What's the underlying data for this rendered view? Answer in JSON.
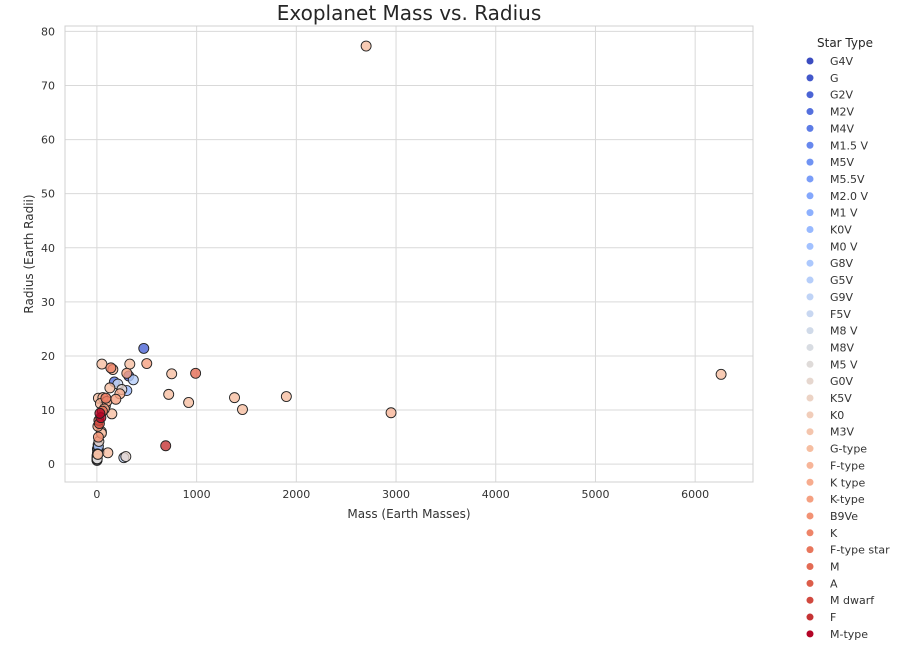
{
  "chart_data": {
    "type": "scatter",
    "title": "Exoplanet Mass vs. Radius",
    "xlabel": "Mass (Earth Masses)",
    "ylabel": "Radius (Earth Radii)",
    "xlim": [
      -320,
      6580
    ],
    "ylim": [
      -3.3,
      81.0
    ],
    "xticks": [
      0,
      1000,
      2000,
      3000,
      4000,
      5000,
      6000
    ],
    "yticks": [
      0,
      10,
      20,
      30,
      40,
      50,
      60,
      70,
      80
    ],
    "grid": true,
    "legend": {
      "title": "Star Type",
      "placement": "outside-right",
      "entries": [
        "G4V",
        "G",
        "G2V",
        "M2V",
        "M4V",
        "M1.5 V",
        "M5V",
        "M5.5V",
        "M2.0 V",
        "M1 V",
        "K0V",
        "M0 V",
        "G8V",
        "G5V",
        "G9V",
        "F5V",
        "M8 V",
        "M8V",
        "M5 V",
        "G0V",
        "K5V",
        "K0",
        "M3V",
        "G-type",
        "F-type",
        "K type",
        "K-type",
        "B9Ve",
        "K",
        "F-type star",
        "M",
        "A",
        "M dwarf",
        "F",
        "M-type"
      ]
    },
    "colors": [
      "#3b4cc0",
      "#4358cb",
      "#4b64d5",
      "#5470de",
      "#5d7ce6",
      "#6788ee",
      "#7093f3",
      "#7a9df8",
      "#84a7fc",
      "#8db0fe",
      "#98b9ff",
      "#a2c1ff",
      "#acc8fd",
      "#b6cefa",
      "#bfd3f6",
      "#c8d7f1",
      "#d0dae9",
      "#d8dce2",
      "#dfdbd9",
      "#e6d7cf",
      "#ecd3c5",
      "#f1cdba",
      "#f4c5ad",
      "#f6bea1",
      "#f7b599",
      "#f7ac8e",
      "#f5a081",
      "#f29274",
      "#ee8468",
      "#e8765c",
      "#e36b54",
      "#dc5d4a",
      "#d1493f",
      "#c53334",
      "#b40426"
    ],
    "series": [
      {
        "name": "G4V",
        "points": [
          [
            3,
            1.6
          ]
        ]
      },
      {
        "name": "G",
        "points": [
          [
            320,
            16.3
          ],
          [
            25,
            2.3
          ]
        ]
      },
      {
        "name": "G2V",
        "points": [
          [
            470,
            21.4
          ],
          [
            12,
            3.6
          ]
        ]
      },
      {
        "name": "M2V",
        "points": [
          [
            175,
            15.2
          ],
          [
            5,
            2.8
          ]
        ]
      },
      {
        "name": "M4V",
        "points": [
          [
            2,
            1.1
          ],
          [
            1,
            0.9
          ]
        ]
      },
      {
        "name": "M1.5 V",
        "points": [
          [
            3,
            1.5
          ]
        ]
      },
      {
        "name": "M5V",
        "points": [
          [
            1,
            0.8
          ]
        ]
      },
      {
        "name": "M5.5V",
        "points": [
          [
            2,
            1.2
          ]
        ]
      },
      {
        "name": "M2.0 V",
        "points": [
          [
            4,
            1.7
          ]
        ]
      },
      {
        "name": "M1 V",
        "points": [
          [
            6,
            2.0
          ]
        ]
      },
      {
        "name": "K0V",
        "points": [
          [
            300,
            13.6
          ]
        ]
      },
      {
        "name": "M0 V",
        "points": [
          [
            8,
            2.4
          ]
        ]
      },
      {
        "name": "G8V",
        "points": [
          [
            15,
            3.3
          ]
        ]
      },
      {
        "name": "G5V",
        "points": [
          [
            365,
            15.6
          ]
        ]
      },
      {
        "name": "G9V",
        "points": [
          [
            270,
            1.2
          ]
        ]
      },
      {
        "name": "F5V",
        "points": [
          [
            210,
            14.8
          ]
        ]
      },
      {
        "name": "M8 V",
        "points": [
          [
            1,
            0.7
          ]
        ]
      },
      {
        "name": "M8V",
        "points": [
          [
            2,
            0.9
          ]
        ]
      },
      {
        "name": "M5 V",
        "points": [
          [
            3,
            1.0
          ]
        ]
      },
      {
        "name": "G0V",
        "points": [
          [
            290,
            1.4
          ],
          [
            250,
            13.8
          ]
        ]
      },
      {
        "name": "K5V",
        "points": [
          [
            20,
            4.2
          ]
        ]
      },
      {
        "name": "K0",
        "points": [
          [
            45,
            6.0
          ]
        ]
      },
      {
        "name": "M3V",
        "points": [
          [
            5,
            1.9
          ]
        ]
      },
      {
        "name": "G-type",
        "points": [
          [
            2700,
            77.3
          ],
          [
            6260,
            16.6
          ],
          [
            1900,
            12.5
          ],
          [
            1380,
            12.3
          ],
          [
            1460,
            10.1
          ],
          [
            920,
            11.4
          ],
          [
            750,
            16.7
          ],
          [
            720,
            12.9
          ],
          [
            330,
            18.5
          ],
          [
            50,
            18.5
          ],
          [
            130,
            14.1
          ],
          [
            150,
            9.3
          ],
          [
            110,
            2.1
          ],
          [
            15,
            12.2
          ],
          [
            85,
            10.8
          ],
          [
            45,
            5.7
          ],
          [
            10,
            1.8
          ]
        ]
      },
      {
        "name": "F-type",
        "points": [
          [
            2950,
            9.5
          ],
          [
            160,
            17.5
          ],
          [
            60,
            12.3
          ],
          [
            35,
            11.2
          ]
        ]
      },
      {
        "name": "K type",
        "points": [
          [
            230,
            13.0
          ],
          [
            100,
            11.6
          ]
        ]
      },
      {
        "name": "K-type",
        "points": [
          [
            500,
            18.6
          ],
          [
            300,
            16.8
          ],
          [
            190,
            12.0
          ],
          [
            75,
            10.2
          ],
          [
            10,
            7.0
          ]
        ]
      },
      {
        "name": "B9Ve",
        "points": [
          [
            15,
            5.0
          ]
        ]
      },
      {
        "name": "K",
        "points": [
          [
            140,
            17.8
          ]
        ]
      },
      {
        "name": "F-type star",
        "points": [
          [
            90,
            12.2
          ]
        ]
      },
      {
        "name": "M",
        "points": [
          [
            990,
            16.8
          ],
          [
            55,
            9.8
          ]
        ]
      },
      {
        "name": "A",
        "points": [
          [
            20,
            8.1
          ]
        ]
      },
      {
        "name": "M dwarf",
        "points": [
          [
            25,
            7.5
          ]
        ]
      },
      {
        "name": "F",
        "points": [
          [
            690,
            3.4
          ]
        ]
      },
      {
        "name": "M-type",
        "points": [
          [
            40,
            8.6
          ],
          [
            30,
            9.4
          ]
        ]
      }
    ]
  }
}
